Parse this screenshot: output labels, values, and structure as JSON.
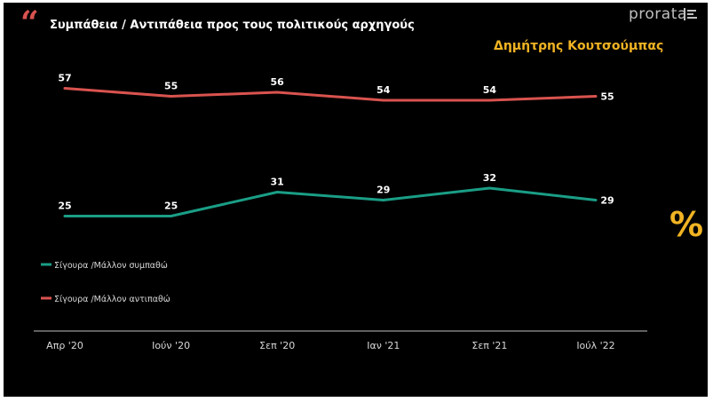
{
  "header": {
    "quote_mark": "“",
    "title": "Συμπάθεια / Αντιπάθεια προς τους πολιτικούς αρχηγούς",
    "subtitle": "Δημήτρης Κουτσούμπας",
    "brand": "prorata",
    "percent_symbol": "%"
  },
  "colors": {
    "background": "#000000",
    "sympathy": "#1a9e86",
    "antipathy": "#d9534f",
    "accent": "#f0b323"
  },
  "chart_data": {
    "type": "line",
    "title": "Συμπάθεια / Αντιπάθεια προς τους πολιτικούς αρχηγούς",
    "subtitle": "Δημήτρης Κουτσούμπας",
    "categories": [
      "Απρ '20",
      "Ιούν '20",
      "Σεπ '20",
      "Ιαν '21",
      "Σεπ '21",
      "Ιούλ '22"
    ],
    "series": [
      {
        "name": "Σίγουρα /Μάλλον αντιπαθώ",
        "color": "#d9534f",
        "values": [
          57,
          55,
          56,
          54,
          54,
          55
        ]
      },
      {
        "name": "Σίγουρα /Μάλλον συμπαθώ",
        "color": "#1a9e86",
        "values": [
          25,
          25,
          31,
          29,
          32,
          29
        ]
      }
    ],
    "legend": {
      "placement": "left",
      "entries": [
        "Σίγουρα /Μάλλον συμπαθώ",
        "Σίγουρα /Μάλλον αντιπαθώ"
      ]
    },
    "ylim": [
      0,
      70
    ],
    "grid": false
  }
}
